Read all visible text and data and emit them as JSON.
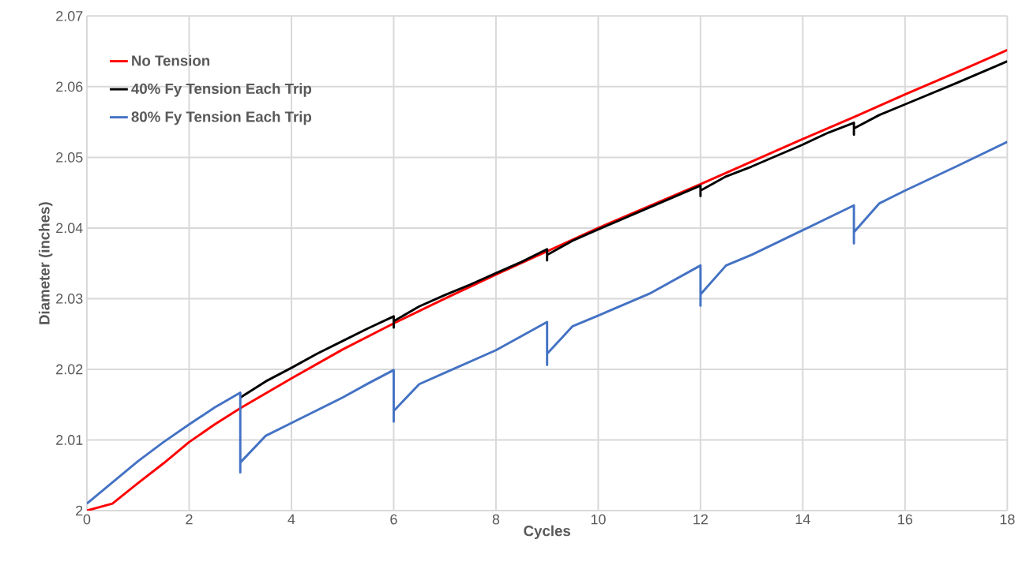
{
  "chart_data": {
    "type": "line",
    "xlabel": "Cycles",
    "ylabel": "Diameter (inches)",
    "xlim": [
      0,
      18
    ],
    "ylim": [
      2,
      2.07
    ],
    "xticks": [
      0,
      2,
      4,
      6,
      8,
      10,
      12,
      14,
      16,
      18
    ],
    "yticks": [
      2,
      2.01,
      2.02,
      2.03,
      2.04,
      2.05,
      2.06,
      2.07
    ],
    "grid": true,
    "legend": "top left",
    "marker": "none",
    "line_style": "solid",
    "series": [
      {
        "name": "No Tension",
        "color": "#ff0000",
        "x": [
          0,
          0.5,
          1,
          1.5,
          2,
          2.5,
          3,
          4,
          5,
          6,
          7,
          8,
          9,
          10,
          11,
          12,
          13,
          14,
          15,
          16,
          17,
          18
        ],
        "values": [
          2.0,
          2.001,
          2.0039,
          2.0067,
          2.0097,
          2.0122,
          2.0145,
          2.0187,
          2.0228,
          2.0265,
          2.03,
          2.0334,
          2.0367,
          2.04,
          2.0431,
          2.0462,
          2.0494,
          2.0526,
          2.0557,
          2.0589,
          2.062,
          2.0652
        ]
      },
      {
        "name": "40% Fy Tension Each Trip",
        "color": "#000000",
        "x": [
          3,
          3.5,
          4,
          4.5,
          5,
          5.5,
          6,
          6,
          6,
          6.5,
          7,
          7.5,
          8,
          8.5,
          9,
          9,
          9,
          9.5,
          10,
          11,
          12,
          12,
          12,
          12.5,
          13,
          14,
          14.5,
          15,
          15,
          15,
          15.5,
          16,
          17,
          18
        ],
        "values": [
          2.016,
          2.0183,
          2.0202,
          2.0222,
          2.024,
          2.0258,
          2.0275,
          2.0259,
          2.0268,
          2.0289,
          2.0305,
          2.032,
          2.0336,
          2.0352,
          2.037,
          2.0354,
          2.0362,
          2.0382,
          2.0398,
          2.0429,
          2.046,
          2.0445,
          2.0453,
          2.0473,
          2.0487,
          2.0518,
          2.0535,
          2.0549,
          2.0532,
          2.0541,
          2.056,
          2.0575,
          2.0605,
          2.0636
        ]
      },
      {
        "name": "80% Fy Tension Each Trip",
        "color": "#4472c4",
        "x": [
          0,
          0.5,
          1,
          1.5,
          2,
          2.5,
          3,
          3,
          3,
          3.5,
          4,
          5,
          5.5,
          6,
          6,
          6,
          6.5,
          7,
          8,
          9,
          9,
          9,
          9.5,
          10,
          11,
          12,
          12,
          12,
          12.5,
          13,
          14,
          15,
          15,
          15,
          15.5,
          16,
          17,
          18
        ],
        "values": [
          2.001,
          2.004,
          2.007,
          2.0097,
          2.0122,
          2.0146,
          2.0167,
          2.0054,
          2.0068,
          2.0106,
          2.0124,
          2.016,
          2.018,
          2.0199,
          2.0126,
          2.0141,
          2.0179,
          2.0195,
          2.0227,
          2.0267,
          2.0206,
          2.0222,
          2.0261,
          2.0276,
          2.0307,
          2.0347,
          2.029,
          2.0306,
          2.0347,
          2.0362,
          2.0397,
          2.0432,
          2.0378,
          2.0394,
          2.0435,
          2.0453,
          2.0487,
          2.0522
        ]
      }
    ]
  }
}
